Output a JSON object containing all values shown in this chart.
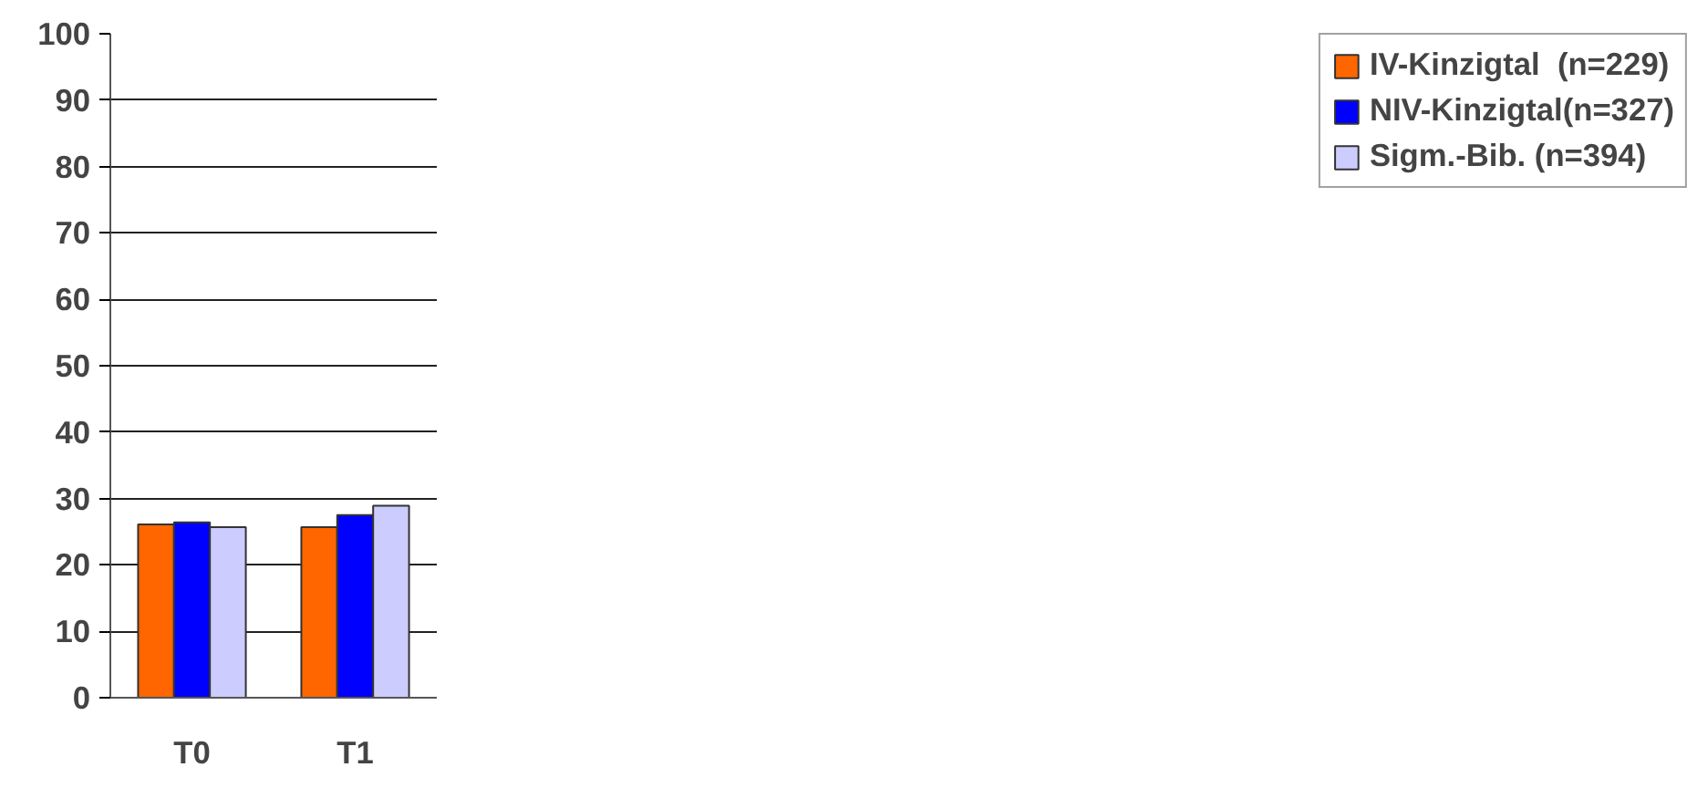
{
  "chart_data": {
    "type": "bar",
    "categories": [
      "T0",
      "T1"
    ],
    "series": [
      {
        "name": "IV-Kinzigtal  (n=229)",
        "color": "#ff6600",
        "values": [
          26.1,
          25.7
        ]
      },
      {
        "name": "NIV-Kinzigtal(n=327)",
        "color": "#0000ff",
        "values": [
          26.4,
          27.5
        ]
      },
      {
        "name": "Sigm.-Bib. (n=394)",
        "color": "#ccccff",
        "values": [
          25.7,
          28.9
        ]
      }
    ],
    "ylim": [
      0,
      100
    ],
    "yticks": [
      0,
      10,
      20,
      30,
      40,
      50,
      60,
      70,
      80,
      90,
      100
    ],
    "grid": "y",
    "legend": "right"
  }
}
